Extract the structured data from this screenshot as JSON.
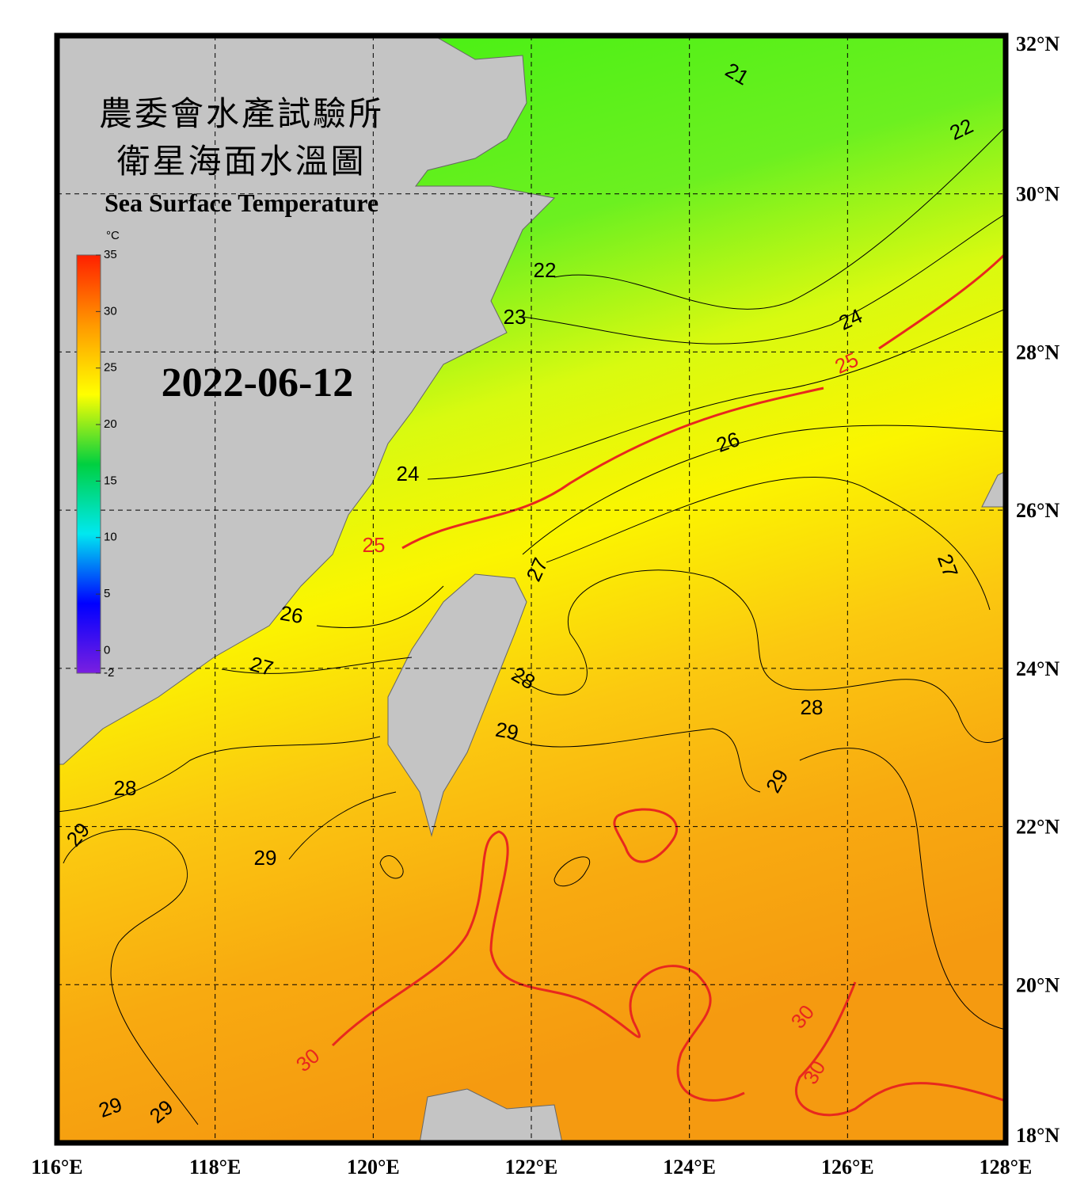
{
  "title_zh_1": "農委會水產試驗所",
  "title_zh_2": "衛星海面水溫圖",
  "title_en": "Sea Surface Temperature",
  "date": "2022-06-12",
  "colorbar": {
    "unit": "°C",
    "range": [
      -2,
      35
    ],
    "ticks": [
      35,
      30,
      25,
      20,
      15,
      10,
      5,
      0,
      -2
    ],
    "colors": [
      "#7a1fe0",
      "#0000ff",
      "#00e8f0",
      "#00d040",
      "#ffff00",
      "#ff9800",
      "#ff2000"
    ]
  },
  "lon_ticks": [
    {
      "value": 116,
      "label": "116°E"
    },
    {
      "value": 118,
      "label": "118°E"
    },
    {
      "value": 120,
      "label": "120°E"
    },
    {
      "value": 122,
      "label": "122°E"
    },
    {
      "value": 124,
      "label": "124°E"
    },
    {
      "value": 126,
      "label": "126°E"
    },
    {
      "value": 128,
      "label": "128°E"
    }
  ],
  "lat_ticks": [
    {
      "value": 32,
      "label": "32°N"
    },
    {
      "value": 30,
      "label": "30°N"
    },
    {
      "value": 28,
      "label": "28°N"
    },
    {
      "value": 26,
      "label": "26°N"
    },
    {
      "value": 24,
      "label": "24°N"
    },
    {
      "value": 22,
      "label": "22°N"
    },
    {
      "value": 20,
      "label": "20°N"
    },
    {
      "value": 18,
      "label": "18°N"
    }
  ],
  "lonlim": [
    116,
    128
  ],
  "latlim": [
    18,
    32
  ],
  "contour_labels": [
    {
      "text": "21",
      "color": "#000"
    },
    {
      "text": "22",
      "color": "#000"
    },
    {
      "text": "22",
      "color": "#000"
    },
    {
      "text": "23",
      "color": "#000"
    },
    {
      "text": "24",
      "color": "#000"
    },
    {
      "text": "25",
      "color": "#e8281e"
    },
    {
      "text": "26",
      "color": "#000"
    },
    {
      "text": "24",
      "color": "#000"
    },
    {
      "text": "25",
      "color": "#e8281e"
    },
    {
      "text": "27",
      "color": "#000"
    },
    {
      "text": "27",
      "color": "#000"
    },
    {
      "text": "26",
      "color": "#000"
    },
    {
      "text": "27",
      "color": "#000"
    },
    {
      "text": "28",
      "color": "#000"
    },
    {
      "text": "28",
      "color": "#000"
    },
    {
      "text": "29",
      "color": "#000"
    },
    {
      "text": "29",
      "color": "#000"
    },
    {
      "text": "28",
      "color": "#000"
    },
    {
      "text": "29",
      "color": "#000"
    },
    {
      "text": "29",
      "color": "#000"
    },
    {
      "text": "30",
      "color": "#e8281e"
    },
    {
      "text": "30",
      "color": "#e8281e"
    },
    {
      "text": "30",
      "color": "#e8281e"
    },
    {
      "text": "29",
      "color": "#000"
    },
    {
      "text": "29",
      "color": "#000"
    }
  ]
}
